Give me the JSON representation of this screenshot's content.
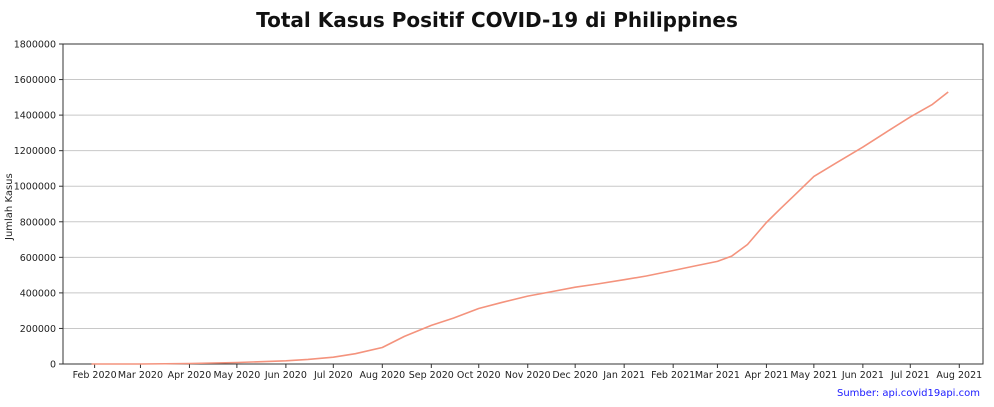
{
  "chart_data": {
    "type": "line",
    "title": "Total Kasus Positif COVID-19 di Philippines",
    "xlabel": "",
    "ylabel": "Jumlah Kasus",
    "source": "Sumber: api.covid19api.com",
    "color": "#f4937d",
    "grid": true,
    "ylim": [
      0,
      1800000
    ],
    "yticks": [
      0,
      200000,
      400000,
      600000,
      800000,
      1000000,
      1200000,
      1400000,
      1600000,
      1800000
    ],
    "xlim": [
      "2020-01-12",
      "2021-08-16"
    ],
    "xticks": [
      {
        "date": "2020-02-01",
        "label": "Feb 2020"
      },
      {
        "date": "2020-03-01",
        "label": "Mar 2020"
      },
      {
        "date": "2020-04-01",
        "label": "Apr 2020"
      },
      {
        "date": "2020-05-01",
        "label": "May 2020"
      },
      {
        "date": "2020-06-01",
        "label": "Jun 2020"
      },
      {
        "date": "2020-07-01",
        "label": "Jul 2020"
      },
      {
        "date": "2020-08-01",
        "label": "Aug 2020"
      },
      {
        "date": "2020-09-01",
        "label": "Sep 2020"
      },
      {
        "date": "2020-10-01",
        "label": "Oct 2020"
      },
      {
        "date": "2020-11-01",
        "label": "Nov 2020"
      },
      {
        "date": "2020-12-01",
        "label": "Dec 2020"
      },
      {
        "date": "2021-01-01",
        "label": "Jan 2021"
      },
      {
        "date": "2021-02-01",
        "label": "Feb 2021"
      },
      {
        "date": "2021-03-01",
        "label": "Mar 2021"
      },
      {
        "date": "2021-04-01",
        "label": "Apr 2021"
      },
      {
        "date": "2021-05-01",
        "label": "May 2021"
      },
      {
        "date": "2021-06-01",
        "label": "Jun 2021"
      },
      {
        "date": "2021-07-01",
        "label": "Jul 2021"
      },
      {
        "date": "2021-08-01",
        "label": "Aug 2021"
      }
    ],
    "series": [
      {
        "name": "",
        "points": [
          {
            "x": "2020-01-30",
            "y": 1
          },
          {
            "x": "2020-03-01",
            "y": 3
          },
          {
            "x": "2020-04-01",
            "y": 2600
          },
          {
            "x": "2020-05-01",
            "y": 8500
          },
          {
            "x": "2020-06-01",
            "y": 18000
          },
          {
            "x": "2020-06-15",
            "y": 26000
          },
          {
            "x": "2020-07-01",
            "y": 38000
          },
          {
            "x": "2020-07-15",
            "y": 58000
          },
          {
            "x": "2020-08-01",
            "y": 93000
          },
          {
            "x": "2020-08-15",
            "y": 155000
          },
          {
            "x": "2020-09-01",
            "y": 217000
          },
          {
            "x": "2020-09-15",
            "y": 258000
          },
          {
            "x": "2020-10-01",
            "y": 312000
          },
          {
            "x": "2020-10-15",
            "y": 345000
          },
          {
            "x": "2020-11-01",
            "y": 382000
          },
          {
            "x": "2020-11-15",
            "y": 405000
          },
          {
            "x": "2020-12-01",
            "y": 432000
          },
          {
            "x": "2020-12-15",
            "y": 450000
          },
          {
            "x": "2021-01-01",
            "y": 474000
          },
          {
            "x": "2021-01-15",
            "y": 495000
          },
          {
            "x": "2021-02-01",
            "y": 526000
          },
          {
            "x": "2021-02-15",
            "y": 552000
          },
          {
            "x": "2021-03-01",
            "y": 577000
          },
          {
            "x": "2021-03-10",
            "y": 607000
          },
          {
            "x": "2021-03-20",
            "y": 672000
          },
          {
            "x": "2021-04-01",
            "y": 796000
          },
          {
            "x": "2021-04-10",
            "y": 875000
          },
          {
            "x": "2021-04-20",
            "y": 960000
          },
          {
            "x": "2021-05-01",
            "y": 1055000
          },
          {
            "x": "2021-05-15",
            "y": 1130000
          },
          {
            "x": "2021-06-01",
            "y": 1220000
          },
          {
            "x": "2021-06-15",
            "y": 1300000
          },
          {
            "x": "2021-07-01",
            "y": 1390000
          },
          {
            "x": "2021-07-15",
            "y": 1460000
          },
          {
            "x": "2021-07-25",
            "y": 1530000
          }
        ]
      }
    ]
  }
}
